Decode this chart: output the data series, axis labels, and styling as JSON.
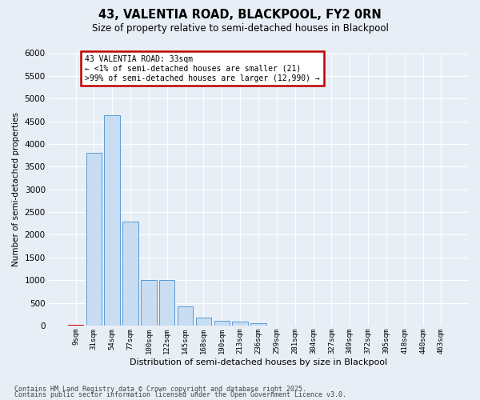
{
  "title1": "43, VALENTIA ROAD, BLACKPOOL, FY2 0RN",
  "title2": "Size of property relative to semi-detached houses in Blackpool",
  "xlabel": "Distribution of semi-detached houses by size in Blackpool",
  "ylabel": "Number of semi-detached properties",
  "categories": [
    "9sqm",
    "31sqm",
    "54sqm",
    "77sqm",
    "100sqm",
    "122sqm",
    "145sqm",
    "168sqm",
    "190sqm",
    "213sqm",
    "236sqm",
    "259sqm",
    "281sqm",
    "304sqm",
    "327sqm",
    "349sqm",
    "372sqm",
    "395sqm",
    "418sqm",
    "440sqm",
    "463sqm"
  ],
  "values": [
    21,
    3810,
    4640,
    2290,
    1000,
    1000,
    420,
    170,
    100,
    90,
    50,
    0,
    0,
    0,
    0,
    0,
    0,
    0,
    0,
    0,
    0
  ],
  "bar_color": "#c8ddf2",
  "bar_edge_color": "#5b9bd5",
  "highlight_bar_index": 0,
  "highlight_bar_color": "#c00000",
  "highlight_bar_edge_color": "#c00000",
  "annotation_title": "43 VALENTIA ROAD: 33sqm",
  "annotation_line1": "← <1% of semi-detached houses are smaller (21)",
  "annotation_line2": ">99% of semi-detached houses are larger (12,990) →",
  "annotation_box_edgecolor": "#c00000",
  "ylim": [
    0,
    6000
  ],
  "yticks": [
    0,
    500,
    1000,
    1500,
    2000,
    2500,
    3000,
    3500,
    4000,
    4500,
    5000,
    5500,
    6000
  ],
  "footnote1": "Contains HM Land Registry data © Crown copyright and database right 2025.",
  "footnote2": "Contains public sector information licensed under the Open Government Licence v3.0.",
  "bg_color": "#e8eef6",
  "grid_color": "#ffffff"
}
